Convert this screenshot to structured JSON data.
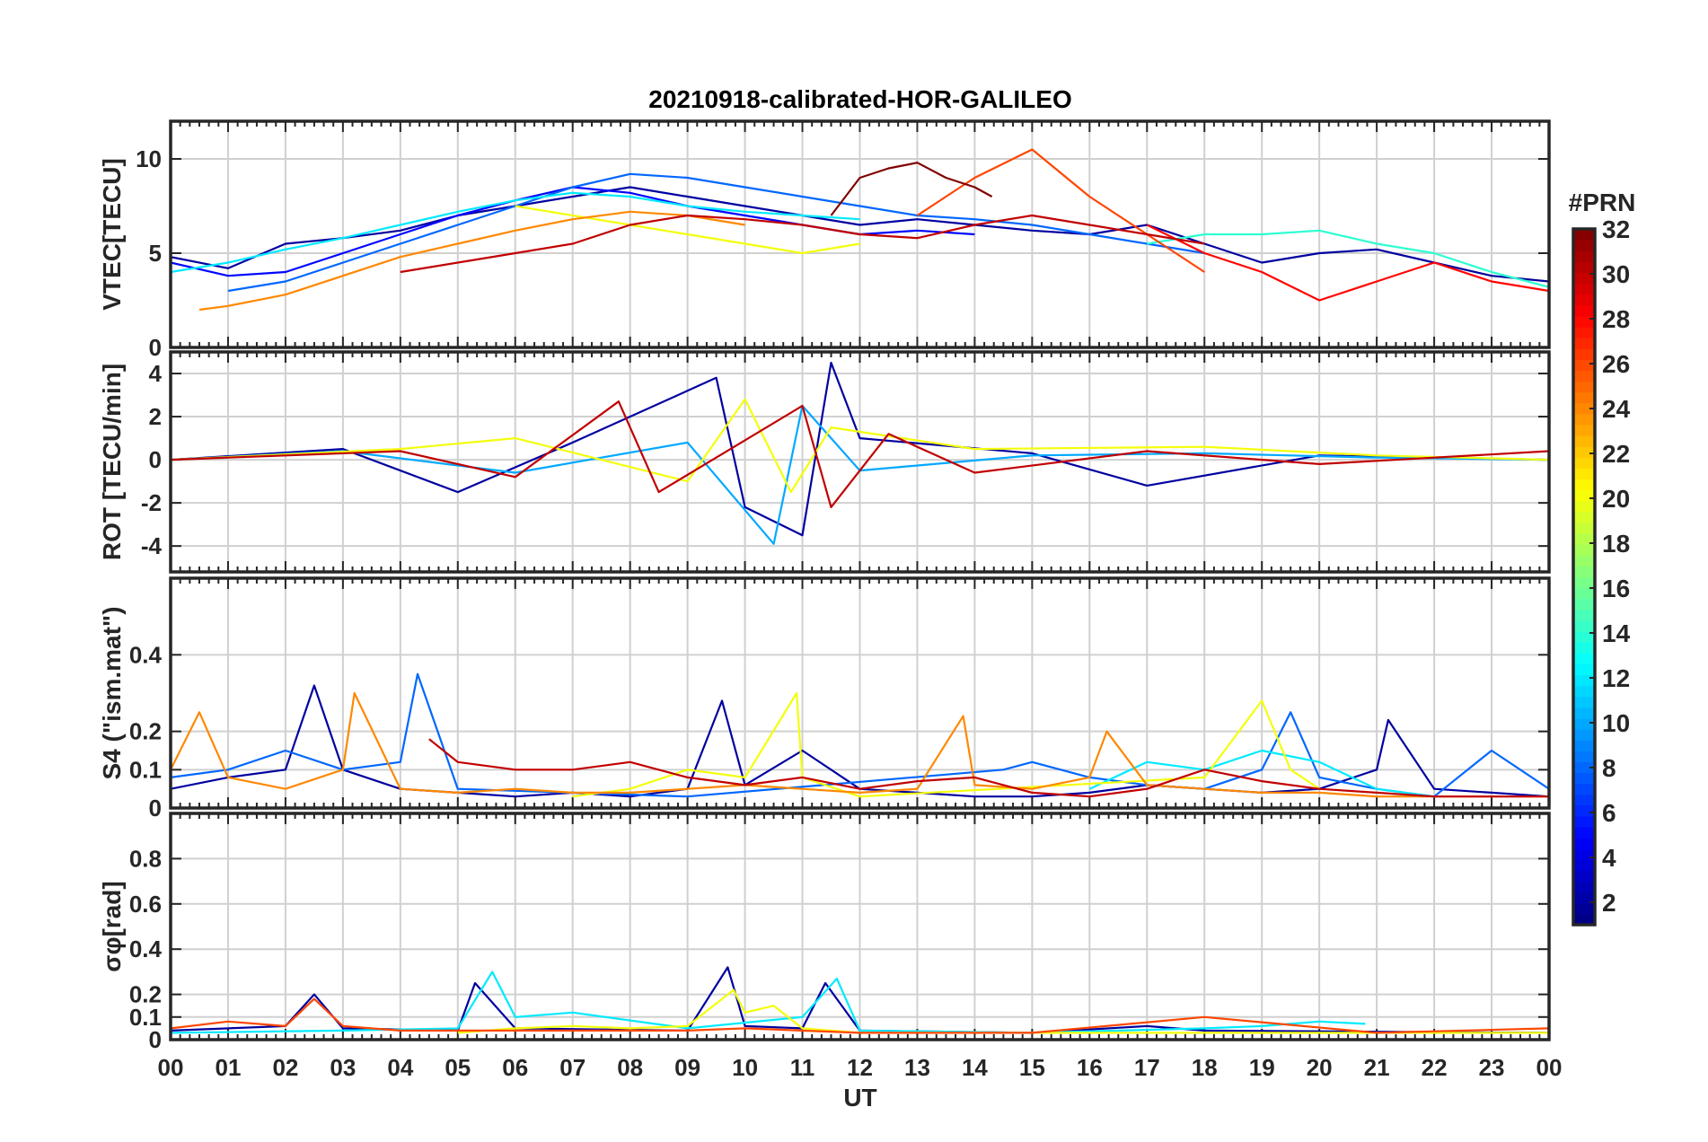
{
  "chart_data": {
    "type": "line",
    "title": "20210918-calibrated-HOR-GALILEO",
    "xlabel": "UT",
    "x_ticks": [
      "00",
      "01",
      "02",
      "03",
      "04",
      "05",
      "06",
      "07",
      "08",
      "09",
      "10",
      "11",
      "12",
      "13",
      "14",
      "15",
      "16",
      "17",
      "18",
      "19",
      "20",
      "21",
      "22",
      "23",
      "00"
    ],
    "xlim": [
      0,
      24
    ],
    "colorbar": {
      "title": "#PRN",
      "range": [
        1,
        32
      ],
      "ticks": [
        "2",
        "4",
        "6",
        "8",
        "10",
        "12",
        "14",
        "16",
        "18",
        "20",
        "22",
        "24",
        "26",
        "28",
        "30",
        "32"
      ],
      "colormap": "jet"
    },
    "panels": [
      {
        "id": "vtec",
        "ylabel": "VTEC[TECU]",
        "ylim": [
          0,
          12
        ],
        "y_ticks": [
          "0",
          "5",
          "10"
        ],
        "y_tick_values": [
          0,
          5,
          10
        ],
        "series": [
          {
            "prn": 2,
            "x": [
              0,
              1,
              2,
              3,
              4,
              5,
              6,
              7,
              8,
              9,
              10,
              11,
              12,
              13,
              14,
              15,
              16,
              17,
              18,
              19,
              20,
              21,
              22,
              23,
              24
            ],
            "values": [
              4.8,
              4.2,
              5.5,
              5.8,
              6.2,
              7.0,
              7.5,
              8.0,
              8.5,
              8.0,
              7.5,
              7.0,
              6.5,
              6.8,
              6.5,
              6.2,
              6.0,
              6.5,
              5.5,
              4.5,
              5.0,
              5.2,
              4.5,
              3.8,
              3.5
            ]
          },
          {
            "prn": 5,
            "x": [
              0,
              1,
              2,
              3,
              4,
              5,
              6,
              7,
              8,
              9,
              10,
              11,
              12,
              13,
              14
            ],
            "values": [
              4.5,
              3.8,
              4.0,
              5.0,
              6.0,
              7.0,
              7.8,
              8.5,
              8.2,
              7.5,
              7.0,
              6.5,
              6.0,
              6.2,
              6.0
            ]
          },
          {
            "prn": 8,
            "x": [
              1,
              2,
              3,
              4,
              5,
              6,
              7,
              8,
              9,
              10,
              11,
              12,
              13,
              14,
              15,
              16,
              17,
              18
            ],
            "values": [
              3.0,
              3.5,
              4.5,
              5.5,
              6.5,
              7.5,
              8.5,
              9.2,
              9.0,
              8.5,
              8.0,
              7.5,
              7.0,
              6.8,
              6.5,
              6.0,
              5.5,
              5.0
            ]
          },
          {
            "prn": 12,
            "x": [
              0,
              1,
              2,
              3,
              4,
              5,
              6,
              7,
              8,
              9,
              10,
              11,
              12
            ],
            "values": [
              4.0,
              4.5,
              5.2,
              5.8,
              6.5,
              7.2,
              7.8,
              8.2,
              8.0,
              7.5,
              7.2,
              7.0,
              6.8
            ]
          },
          {
            "prn": 14,
            "x": [
              17,
              18,
              19,
              20,
              21,
              22,
              23,
              24
            ],
            "values": [
              5.5,
              6.0,
              6.0,
              6.2,
              5.5,
              5.0,
              4.0,
              3.2
            ]
          },
          {
            "prn": 20,
            "x": [
              6,
              7,
              8,
              9,
              10,
              11,
              12
            ],
            "values": [
              7.5,
              7.0,
              6.5,
              6.0,
              5.5,
              5.0,
              5.5
            ]
          },
          {
            "prn": 24,
            "x": [
              0.5,
              1,
              2,
              3,
              4,
              5,
              6,
              7,
              8,
              9,
              10
            ],
            "values": [
              2.0,
              2.2,
              2.8,
              3.8,
              4.8,
              5.5,
              6.2,
              6.8,
              7.2,
              7.0,
              6.5
            ]
          },
          {
            "prn": 26,
            "x": [
              13,
              14,
              15,
              16,
              17,
              18
            ],
            "values": [
              7.0,
              9.0,
              10.5,
              8.0,
              6.0,
              4.0
            ]
          },
          {
            "prn": 28,
            "x": [
              17,
              18,
              19,
              20,
              21,
              22,
              23,
              24
            ],
            "values": [
              6.5,
              5.0,
              4.0,
              2.5,
              3.5,
              4.5,
              3.5,
              3.0
            ]
          },
          {
            "prn": 30,
            "x": [
              4,
              5,
              6,
              7,
              8,
              9,
              10,
              11,
              12,
              13,
              14,
              15,
              16,
              17,
              18
            ],
            "values": [
              4.0,
              4.5,
              5.0,
              5.5,
              6.5,
              7.0,
              6.8,
              6.5,
              6.0,
              5.8,
              6.5,
              7.0,
              6.5,
              6.0,
              5.5
            ]
          },
          {
            "prn": 32,
            "x": [
              11.5,
              12,
              12.5,
              13,
              13.5,
              14,
              14.3
            ],
            "values": [
              7.0,
              9.0,
              9.5,
              9.8,
              9.0,
              8.5,
              8.0
            ]
          }
        ]
      },
      {
        "id": "rot",
        "ylabel": "ROT [TECU/min]",
        "ylim": [
          -5.2,
          5
        ],
        "y_ticks": [
          "-4",
          "-2",
          "0",
          "2",
          "4"
        ],
        "y_tick_values": [
          -4,
          -2,
          0,
          2,
          4
        ],
        "series": [
          {
            "prn": 2,
            "x": [
              0,
              3,
              5,
              7,
              9.5,
              10,
              11,
              11.5,
              12,
              15,
              17,
              20,
              24
            ],
            "values": [
              0,
              0.5,
              -1.5,
              0.8,
              3.8,
              -2.2,
              -3.5,
              4.5,
              1,
              0.3,
              -1.2,
              0.2,
              0
            ]
          },
          {
            "prn": 10,
            "x": [
              0,
              3,
              6,
              9,
              10.5,
              11,
              12,
              15,
              18,
              21,
              24
            ],
            "values": [
              0,
              0.4,
              -0.6,
              0.8,
              -3.9,
              2.5,
              -0.5,
              0.2,
              0.3,
              0.1,
              0
            ]
          },
          {
            "prn": 20,
            "x": [
              0,
              4,
              6,
              9,
              10,
              10.8,
              11.5,
              14,
              18,
              21,
              24
            ],
            "values": [
              0,
              0.5,
              1,
              -1,
              2.8,
              -1.5,
              1.5,
              0.5,
              0.6,
              0.2,
              0
            ]
          },
          {
            "prn": 30,
            "x": [
              0,
              4,
              6,
              7.8,
              8.5,
              11,
              11.5,
              12.5,
              14,
              17,
              20,
              24
            ],
            "values": [
              0,
              0.4,
              -0.8,
              2.7,
              -1.5,
              2.5,
              -2.2,
              1.2,
              -0.6,
              0.4,
              -0.2,
              0.4
            ]
          }
        ]
      },
      {
        "id": "s4",
        "ylabel": "S4 (\"ism.mat\")",
        "ylim": [
          0,
          0.6
        ],
        "y_ticks": [
          "0",
          "0.1",
          "0.2",
          "0.4"
        ],
        "y_tick_values": [
          0,
          0.1,
          0.2,
          0.4
        ],
        "series": [
          {
            "prn": 2,
            "x": [
              0,
              1,
              2,
              2.5,
              3,
              4,
              5,
              6,
              7,
              8,
              9,
              9.6,
              10,
              11,
              12,
              13,
              14,
              15,
              16,
              17,
              18,
              19,
              20,
              21,
              21.2,
              22,
              23,
              24
            ],
            "values": [
              0.05,
              0.08,
              0.1,
              0.32,
              0.1,
              0.05,
              0.04,
              0.03,
              0.04,
              0.03,
              0.05,
              0.28,
              0.06,
              0.15,
              0.05,
              0.04,
              0.03,
              0.03,
              0.04,
              0.06,
              0.05,
              0.04,
              0.05,
              0.1,
              0.23,
              0.05,
              0.04,
              0.03
            ]
          },
          {
            "prn": 8,
            "x": [
              0,
              1,
              2,
              3,
              4,
              4.3,
              5,
              9,
              14.5,
              15,
              16,
              17,
              18,
              19,
              19.5,
              20,
              21,
              22,
              23,
              24
            ],
            "values": [
              0.08,
              0.1,
              0.15,
              0.1,
              0.12,
              0.35,
              0.05,
              0.03,
              0.1,
              0.12,
              0.08,
              0.06,
              0.05,
              0.1,
              0.25,
              0.08,
              0.05,
              0.03,
              0.15,
              0.05
            ]
          },
          {
            "prn": 12,
            "x": [
              16,
              17,
              18,
              19,
              20,
              21,
              22
            ],
            "values": [
              0.05,
              0.12,
              0.1,
              0.15,
              0.12,
              0.05,
              0.03
            ]
          },
          {
            "prn": 20,
            "x": [
              7,
              8,
              9,
              10,
              10.9,
              11,
              12,
              18,
              19,
              19.5,
              20
            ],
            "values": [
              0.03,
              0.05,
              0.1,
              0.08,
              0.3,
              0.08,
              0.03,
              0.08,
              0.28,
              0.1,
              0.05
            ]
          },
          {
            "prn": 24,
            "x": [
              0,
              0.5,
              1,
              2,
              3,
              3.2,
              4,
              5,
              6,
              7,
              8,
              9,
              10,
              11,
              12,
              13,
              13.8,
              14,
              15,
              16,
              16.3,
              17,
              18,
              19,
              20,
              21,
              22,
              23,
              24
            ],
            "values": [
              0.1,
              0.25,
              0.08,
              0.05,
              0.1,
              0.3,
              0.05,
              0.04,
              0.05,
              0.04,
              0.04,
              0.05,
              0.06,
              0.05,
              0.04,
              0.05,
              0.24,
              0.06,
              0.05,
              0.08,
              0.2,
              0.06,
              0.05,
              0.04,
              0.04,
              0.03,
              0.03,
              0.03,
              0.03
            ]
          },
          {
            "prn": 30,
            "x": [
              4.5,
              5,
              6,
              7,
              8,
              9,
              10,
              11,
              12,
              13,
              14,
              15,
              16,
              17,
              18,
              19,
              20,
              21,
              22,
              23,
              24
            ],
            "values": [
              0.18,
              0.12,
              0.1,
              0.1,
              0.12,
              0.08,
              0.06,
              0.08,
              0.05,
              0.07,
              0.08,
              0.04,
              0.03,
              0.05,
              0.1,
              0.07,
              0.05,
              0.04,
              0.03,
              0.03,
              0.03
            ]
          }
        ]
      },
      {
        "id": "sigma_phi",
        "ylabel": "σφ[rad]",
        "ylim": [
          0,
          1
        ],
        "y_ticks": [
          "0",
          "0.1",
          "0.2",
          "0.4",
          "0.6",
          "0.8"
        ],
        "y_tick_values": [
          0,
          0.1,
          0.2,
          0.4,
          0.6,
          0.8
        ],
        "series": [
          {
            "prn": 2,
            "x": [
              0,
              2,
              2.5,
              3,
              5,
              5.3,
              6,
              9,
              9.7,
              10,
              11,
              11.4,
              12,
              15,
              17,
              18,
              24
            ],
            "values": [
              0.04,
              0.06,
              0.2,
              0.05,
              0.04,
              0.25,
              0.05,
              0.04,
              0.32,
              0.06,
              0.05,
              0.25,
              0.04,
              0.03,
              0.06,
              0.04,
              0.03
            ]
          },
          {
            "prn": 12,
            "x": [
              0,
              3,
              5,
              5.6,
              6,
              7,
              9,
              11,
              11.6,
              12,
              15,
              18,
              19,
              20,
              20.8
            ],
            "values": [
              0.03,
              0.04,
              0.05,
              0.3,
              0.1,
              0.12,
              0.05,
              0.1,
              0.27,
              0.04,
              0.03,
              0.05,
              0.06,
              0.08,
              0.07
            ]
          },
          {
            "prn": 20,
            "x": [
              5,
              6,
              7,
              8,
              9,
              9.8,
              10,
              10.5,
              11,
              12,
              15,
              18,
              24
            ],
            "values": [
              0.03,
              0.05,
              0.06,
              0.05,
              0.06,
              0.22,
              0.12,
              0.15,
              0.05,
              0.03,
              0.03,
              0.03,
              0.03
            ]
          },
          {
            "prn": 26,
            "x": [
              0,
              1,
              2,
              2.5,
              3,
              4,
              6,
              9,
              10,
              12,
              15,
              18,
              21,
              24
            ],
            "values": [
              0.05,
              0.08,
              0.06,
              0.18,
              0.06,
              0.04,
              0.04,
              0.04,
              0.05,
              0.03,
              0.03,
              0.1,
              0.03,
              0.05
            ]
          }
        ]
      }
    ]
  }
}
